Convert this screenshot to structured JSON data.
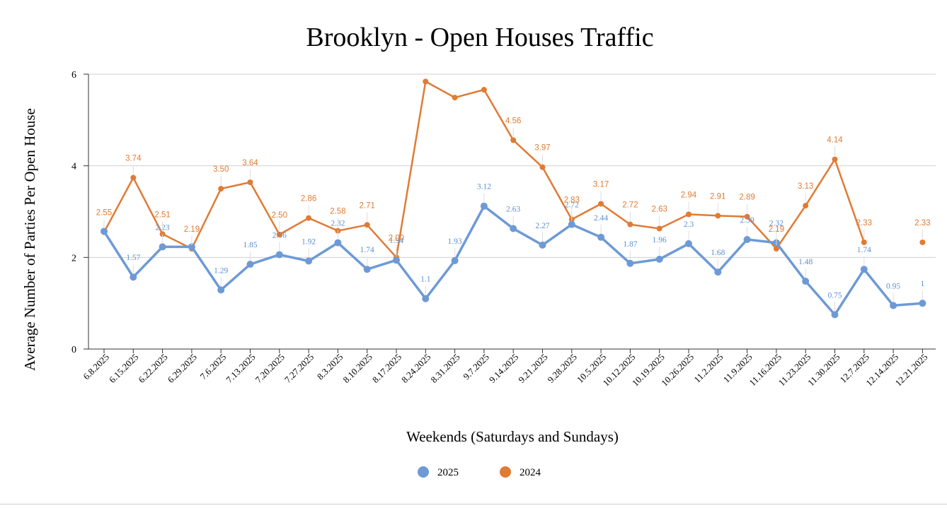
{
  "chart_data": {
    "type": "line",
    "title": "Brooklyn - Open Houses Traffic",
    "xlabel": "Weekends (Saturdays and Sundays)",
    "ylabel": "Average Number of Parties Per Open House",
    "ylim": [
      0,
      6
    ],
    "yticks": [
      "0",
      "2",
      "4",
      "6"
    ],
    "categories": [
      "6.8.2025",
      "6.15.2025",
      "6.22.2025",
      "6.29.2025",
      "7.6.2025",
      "7.13.2025",
      "7.20.2025",
      "7.27.2025",
      "8.3.2025",
      "8.10.2025",
      "8.17.2025",
      "8.24.2025",
      "8.31.2025",
      "9.7.2025",
      "9.14.2025",
      "9.21.2025",
      "9.28.2025",
      "10.5.2025",
      "10.12.2025",
      "10.19.2025",
      "10.26.2025",
      "11.2.2025",
      "11.9.2025",
      "11.16.2025",
      "11.23.2025",
      "11.30.2025",
      "12.7.2025",
      "12.14.2025",
      "12.21.2025"
    ],
    "series": [
      {
        "name": "2025",
        "color": "#6d9ad6",
        "values": [
          2.57,
          1.57,
          2.23,
          2.23,
          1.29,
          1.85,
          2.06,
          1.92,
          2.32,
          1.74,
          1.94,
          1.1,
          1.93,
          3.12,
          2.63,
          2.27,
          2.72,
          2.44,
          1.87,
          1.96,
          2.3,
          1.68,
          2.39,
          2.32,
          1.48,
          0.75,
          1.74,
          0.95,
          1.0
        ],
        "labels": [
          "",
          "1.57",
          "2.23",
          "",
          "1.29",
          "1.85",
          "2.06",
          "1.92",
          "2.32",
          "1.74",
          "1.94",
          "1.1",
          "1.93",
          "3.12",
          "2.63",
          "2.27",
          "2.72",
          "2.44",
          "1.87",
          "1.96",
          "2.3",
          "1.68",
          "2.39",
          "2.32",
          "1.48",
          "0.75",
          "1.74",
          "0.95",
          "1"
        ]
      },
      {
        "name": "2024",
        "color": "#e07b34",
        "values": [
          2.55,
          3.74,
          2.51,
          2.19,
          3.5,
          3.64,
          2.5,
          2.86,
          2.58,
          2.71,
          2.0,
          5.84,
          5.49,
          5.66,
          4.56,
          3.97,
          2.83,
          3.17,
          2.72,
          2.63,
          2.94,
          2.91,
          2.89,
          2.19,
          3.13,
          4.14,
          2.33,
          null,
          2.33
        ],
        "labels": [
          "2.55",
          "3.74",
          "2.51",
          "2.19",
          "3.50",
          "3.64",
          "2.50",
          "2.86",
          "2.58",
          "2.71",
          "2.00",
          "",
          "",
          "",
          "4.56",
          "3.97",
          "2.83",
          "3.17",
          "2.72",
          "2.63",
          "2.94",
          "2.91",
          "2.89",
          "2.19",
          "3.13",
          "4.14",
          "2.33",
          "",
          "2.33"
        ]
      }
    ],
    "legend_position": "bottom-center",
    "grid": true
  }
}
